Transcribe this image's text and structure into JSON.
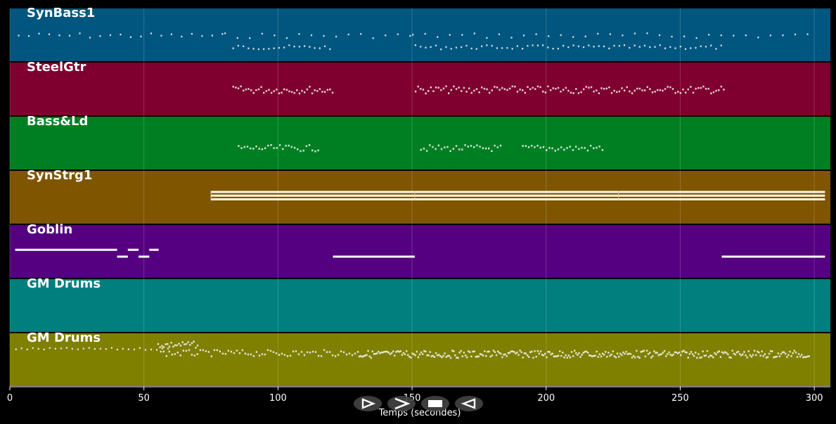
{
  "chart_data": {
    "type": "piano-roll",
    "xlabel": "Temps (secondes)",
    "xlim": [
      0,
      306
    ],
    "x_ticks": [
      0,
      50,
      100,
      150,
      200,
      250,
      300
    ],
    "grid": true,
    "tracks": [
      {
        "name": "SynBass1",
        "color": "#00567f",
        "patterns": [
          {
            "kind": "dots",
            "start": 3,
            "end": 80,
            "step": 3.8,
            "pitch": 0.5,
            "jitter": 0.05
          },
          {
            "kind": "dots",
            "start": 80,
            "end": 150,
            "step": 4.6,
            "pitch": 0.5,
            "jitter": 0.05
          },
          {
            "kind": "dots",
            "start": 150,
            "end": 300,
            "step": 4.6,
            "pitch": 0.5,
            "jitter": 0.05
          },
          {
            "kind": "dots",
            "start": 83,
            "end": 121,
            "step": 1.9,
            "pitch": 0.28,
            "jitter": 0.04
          },
          {
            "kind": "dots",
            "start": 151,
            "end": 266,
            "step": 1.9,
            "pitch": 0.28,
            "jitter": 0.04
          }
        ]
      },
      {
        "name": "SteelGtr",
        "color": "#7f002e",
        "patterns": [
          {
            "kind": "dense",
            "start": 83,
            "end": 121,
            "step": 0.95,
            "pitch": 0.5,
            "jitter": 0.07
          },
          {
            "kind": "dense",
            "start": 151,
            "end": 266,
            "step": 0.95,
            "pitch": 0.5,
            "jitter": 0.07
          }
        ]
      },
      {
        "name": "Bass&Ld",
        "color": "#007f22",
        "patterns": [
          {
            "kind": "dense",
            "start": 85,
            "end": 115,
            "step": 1.1,
            "pitch": 0.42,
            "jitter": 0.06
          },
          {
            "kind": "dense",
            "start": 153,
            "end": 183,
            "step": 1.1,
            "pitch": 0.42,
            "jitter": 0.06
          },
          {
            "kind": "dense",
            "start": 191,
            "end": 221,
            "step": 1.1,
            "pitch": 0.42,
            "jitter": 0.06
          }
        ]
      },
      {
        "name": "SynStrg1",
        "color": "#7f5500",
        "patterns": [
          {
            "kind": "bars",
            "segments": [
              [
                75,
                151
              ],
              [
                151,
                227
              ],
              [
                227,
                304
              ]
            ],
            "pitches": [
              0.62,
              0.55,
              0.48
            ]
          }
        ]
      },
      {
        "name": "Goblin",
        "color": "#550080",
        "patterns": [
          {
            "kind": "segments",
            "segments": [
              [
                2,
                40,
                0.55
              ],
              [
                40,
                44,
                0.42
              ],
              [
                44,
                48,
                0.55
              ],
              [
                48,
                52,
                0.42
              ],
              [
                52,
                55.5,
                0.55
              ],
              [
                120.5,
                151,
                0.42
              ],
              [
                265.5,
                304,
                0.42
              ]
            ]
          }
        ]
      },
      {
        "name": "GM Drums",
        "color": "#007f7f",
        "patterns": []
      },
      {
        "name": "GM Drums",
        "color": "#7f7f00",
        "patterns": [
          {
            "kind": "dots",
            "start": 2,
            "end": 60,
            "step": 2.1,
            "pitch": 0.72,
            "jitter": 0.02
          },
          {
            "kind": "dense",
            "start": 55,
            "end": 70,
            "step": 0.7,
            "pitch": 0.8,
            "jitter": 0.06
          },
          {
            "kind": "dense",
            "start": 56,
            "end": 130,
            "step": 1.05,
            "pitch": 0.64,
            "jitter": 0.06
          },
          {
            "kind": "dense",
            "start": 130,
            "end": 298,
            "step": 0.55,
            "pitch": 0.62,
            "jitter": 0.07
          }
        ]
      }
    ]
  },
  "controls": {
    "buttons": [
      {
        "id": "play-outline",
        "icon": "play-outline-icon"
      },
      {
        "id": "forward",
        "icon": "forward-chevron-icon"
      },
      {
        "id": "stop",
        "icon": "stop-icon"
      },
      {
        "id": "back",
        "icon": "back-triangle-icon"
      }
    ]
  }
}
